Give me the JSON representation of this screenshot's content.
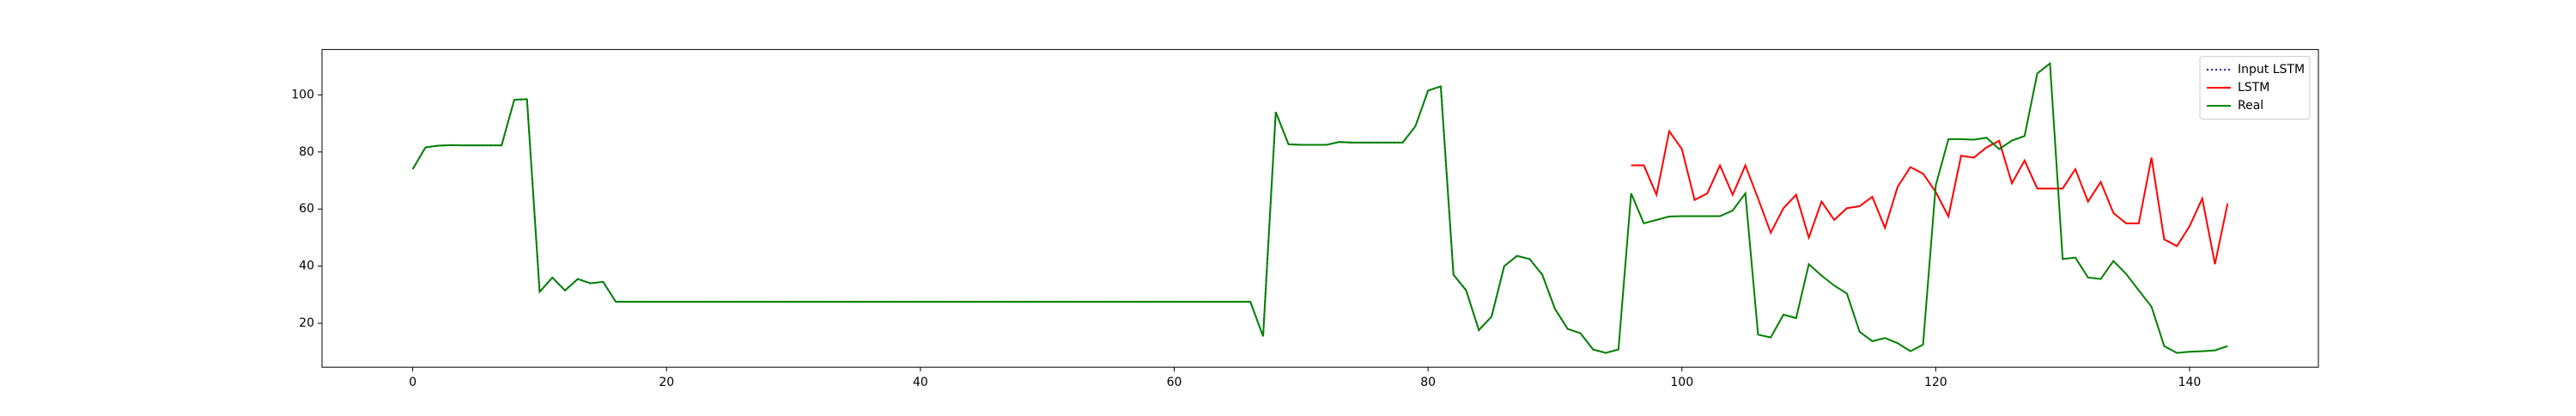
{
  "chart_data": {
    "type": "line",
    "x": [
      0,
      1,
      2,
      3,
      4,
      5,
      6,
      7,
      8,
      9,
      10,
      11,
      12,
      13,
      14,
      15,
      16,
      17,
      18,
      19,
      20,
      21,
      22,
      23,
      24,
      25,
      26,
      27,
      28,
      29,
      30,
      31,
      32,
      33,
      34,
      35,
      36,
      37,
      38,
      39,
      40,
      41,
      42,
      43,
      44,
      45,
      46,
      47,
      48,
      49,
      50,
      51,
      52,
      53,
      54,
      55,
      56,
      57,
      58,
      59,
      60,
      61,
      62,
      63,
      64,
      65,
      66,
      67,
      68,
      69,
      70,
      71,
      72,
      73,
      74,
      75,
      76,
      77,
      78,
      79,
      80,
      81,
      82,
      83,
      84,
      85,
      86,
      87,
      88,
      89,
      90,
      91,
      92,
      93,
      94,
      95,
      96,
      97,
      98,
      99,
      100,
      101,
      102,
      103,
      104,
      105,
      106,
      107,
      108,
      109,
      110,
      111,
      112,
      113,
      114,
      115,
      116,
      117,
      118,
      119,
      120,
      121,
      122,
      123,
      124,
      125,
      126,
      127,
      128,
      129,
      130,
      131,
      132,
      133,
      134,
      135,
      136,
      137,
      138,
      139,
      140,
      141,
      142,
      143
    ],
    "series": [
      {
        "name": "Input LSTM",
        "color": "#1f1fb4",
        "linestyle": "dotted",
        "values": [
          74,
          81.6,
          82.2,
          82.4,
          82.3,
          82.3,
          82.3,
          82.3,
          98.3,
          98.5,
          31,
          36,
          31.5,
          35.5,
          34,
          34.5,
          27.5,
          27.5,
          27.5,
          27.5,
          27.5,
          27.5,
          27.5,
          27.5,
          27.5,
          27.5,
          27.5,
          27.5,
          27.5,
          27.5,
          27.5,
          27.5,
          27.5,
          27.5,
          27.5,
          27.5,
          27.5,
          27.5,
          27.5,
          27.5,
          27.5,
          27.5,
          27.5,
          27.5,
          27.5,
          27.5,
          27.5,
          27.5,
          27.5,
          27.5,
          27.5,
          27.5,
          27.5,
          27.5,
          27.5,
          27.5,
          27.5,
          27.5,
          27.5,
          27.5,
          27.5,
          27.5,
          27.5,
          27.5,
          27.5,
          27.5,
          27.5,
          15.4,
          94,
          82.7,
          82.5,
          82.5,
          82.5,
          83.5,
          83.3,
          83.3,
          83.3,
          83.3,
          83.3,
          89,
          101.5,
          103,
          37,
          31.5,
          17.6,
          22.3,
          40,
          43.6,
          42.5,
          37,
          25,
          18,
          16.5,
          10.8,
          9.6,
          10.8,
          null,
          null,
          null,
          null,
          null,
          null,
          null,
          null,
          null,
          null,
          null,
          null,
          null,
          null,
          null,
          null,
          null,
          null,
          null,
          null,
          null,
          null,
          null,
          null,
          null,
          null,
          null,
          null,
          null,
          null,
          null,
          null,
          null,
          null,
          null,
          null,
          null,
          null,
          null,
          null,
          null,
          null,
          null,
          null,
          null,
          null,
          null,
          null
        ]
      },
      {
        "name": "LSTM",
        "color": "#ff0000",
        "linestyle": "solid",
        "values": [
          null,
          null,
          null,
          null,
          null,
          null,
          null,
          null,
          null,
          null,
          null,
          null,
          null,
          null,
          null,
          null,
          null,
          null,
          null,
          null,
          null,
          null,
          null,
          null,
          null,
          null,
          null,
          null,
          null,
          null,
          null,
          null,
          null,
          null,
          null,
          null,
          null,
          null,
          null,
          null,
          null,
          null,
          null,
          null,
          null,
          null,
          null,
          null,
          null,
          null,
          null,
          null,
          null,
          null,
          null,
          null,
          null,
          null,
          null,
          null,
          null,
          null,
          null,
          null,
          null,
          null,
          null,
          null,
          null,
          null,
          null,
          null,
          null,
          null,
          null,
          null,
          null,
          null,
          null,
          null,
          null,
          null,
          null,
          null,
          null,
          null,
          null,
          null,
          null,
          null,
          null,
          null,
          null,
          null,
          null,
          null,
          75.3,
          75.3,
          65,
          87.3,
          81,
          63.2,
          65.5,
          75.3,
          65,
          75.3,
          63.7,
          51.7,
          60.3,
          65,
          50,
          62.6,
          56.2,
          60.3,
          61,
          64.3,
          53.4,
          67.8,
          74.7,
          72.4,
          66,
          57.4,
          78.7,
          78,
          81.6,
          83.9,
          69,
          77,
          67.2,
          67.2,
          67.2,
          74,
          62.6,
          69.5,
          58.6,
          55,
          55,
          78,
          49.4,
          47,
          54,
          63.7,
          40.7,
          62
        ]
      },
      {
        "name": "Real",
        "color": "#008000",
        "linestyle": "solid",
        "values": [
          74,
          81.6,
          82.2,
          82.4,
          82.3,
          82.3,
          82.3,
          82.3,
          98.3,
          98.5,
          31,
          36,
          31.5,
          35.5,
          34,
          34.5,
          27.5,
          27.5,
          27.5,
          27.5,
          27.5,
          27.5,
          27.5,
          27.5,
          27.5,
          27.5,
          27.5,
          27.5,
          27.5,
          27.5,
          27.5,
          27.5,
          27.5,
          27.5,
          27.5,
          27.5,
          27.5,
          27.5,
          27.5,
          27.5,
          27.5,
          27.5,
          27.5,
          27.5,
          27.5,
          27.5,
          27.5,
          27.5,
          27.5,
          27.5,
          27.5,
          27.5,
          27.5,
          27.5,
          27.5,
          27.5,
          27.5,
          27.5,
          27.5,
          27.5,
          27.5,
          27.5,
          27.5,
          27.5,
          27.5,
          27.5,
          27.5,
          15.4,
          94,
          82.7,
          82.5,
          82.5,
          82.5,
          83.5,
          83.3,
          83.3,
          83.3,
          83.3,
          83.3,
          89,
          101.5,
          103,
          37,
          31.5,
          17.6,
          22.3,
          40,
          43.6,
          42.5,
          37,
          25,
          18,
          16.5,
          10.8,
          9.6,
          10.8,
          65.5,
          55,
          56.2,
          57.4,
          57.5,
          57.5,
          57.5,
          57.5,
          59.5,
          65.5,
          16,
          15,
          23,
          21.8,
          40.7,
          36.7,
          33.2,
          30.4,
          17,
          13.7,
          14.8,
          13,
          10.2,
          12.5,
          68.3,
          84.5,
          84.5,
          84.3,
          85,
          81,
          84,
          85.6,
          107.5,
          111,
          42.5,
          43,
          36,
          35.5,
          41.8,
          37.3,
          31.5,
          25.8,
          12,
          9.6,
          10,
          10.2,
          10.5,
          12
        ]
      }
    ],
    "xlim": [
      -7.15,
      150.15
    ],
    "xticks": [
      0,
      20,
      40,
      60,
      80,
      100,
      120,
      140
    ],
    "ylim": [
      4.6,
      115.9
    ],
    "yticks": [
      20,
      40,
      60,
      80,
      100
    ],
    "grid": false,
    "legend": "upper right"
  }
}
